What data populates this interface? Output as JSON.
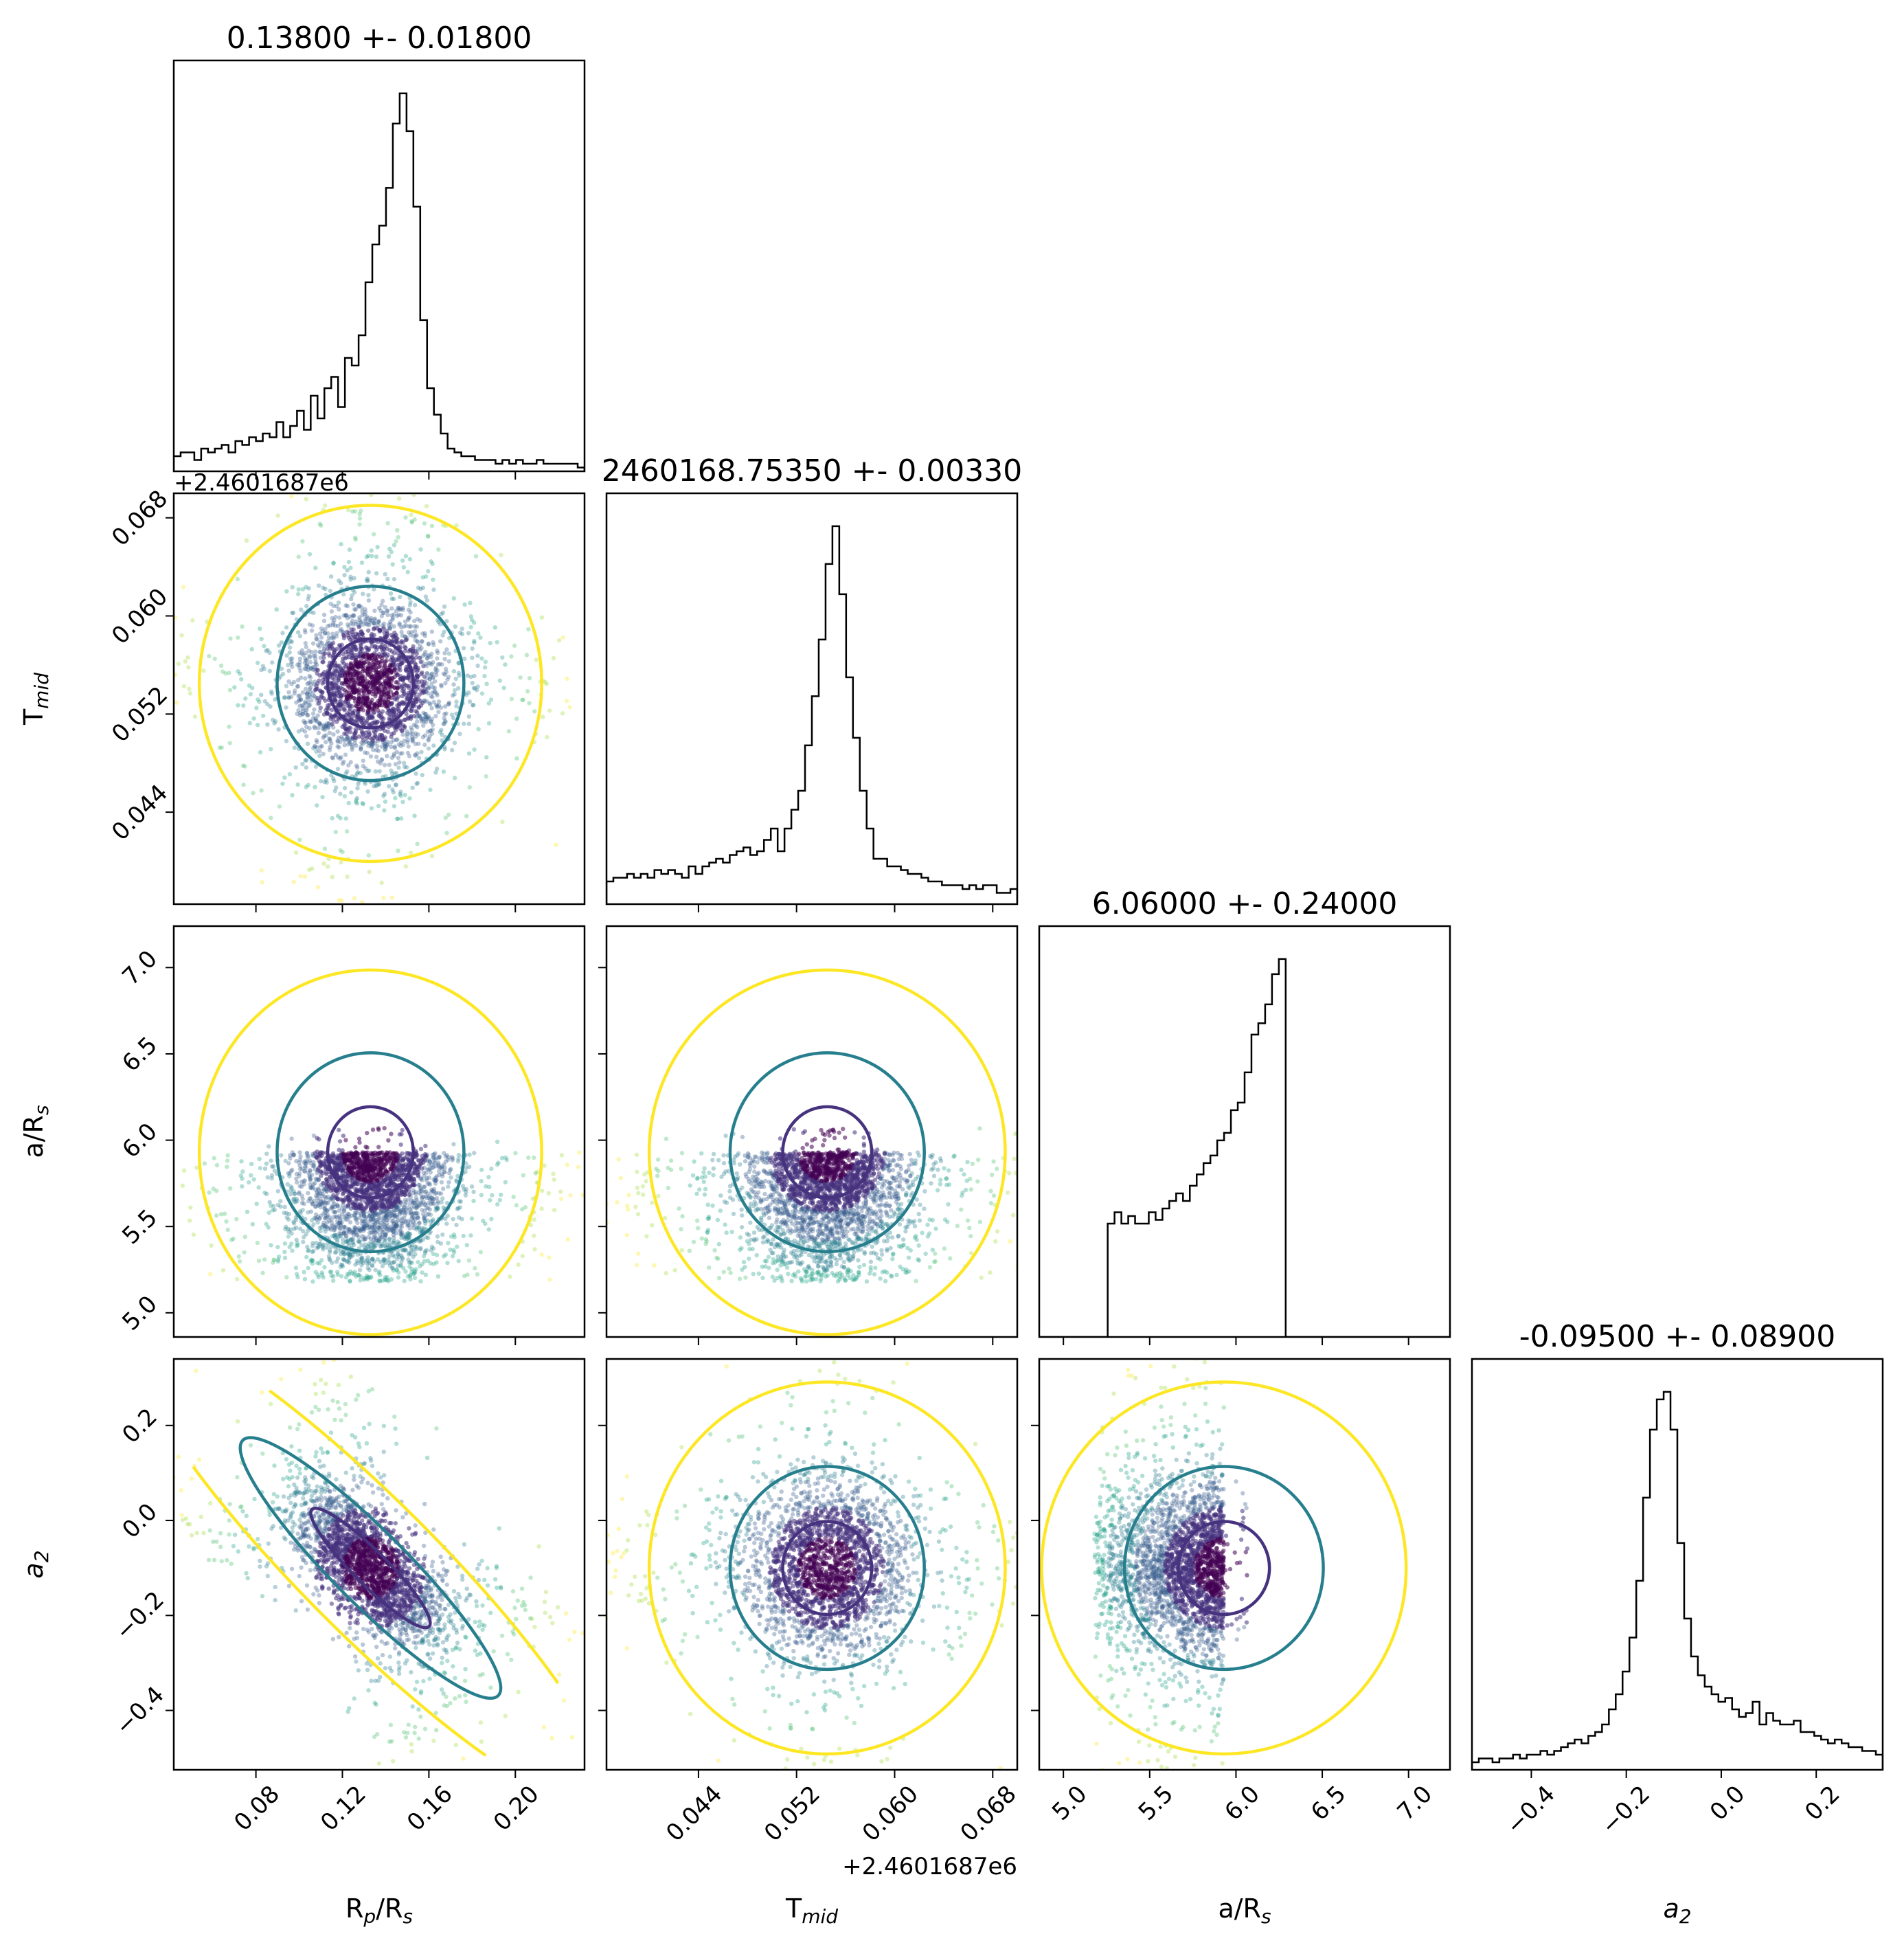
{
  "chart_data": {
    "type": "corner",
    "parameters": [
      {
        "key": "rprs",
        "label": "R",
        "label_sub": "p",
        "label_rest": "/R",
        "label_sub2": "s",
        "range": [
          0.042,
          0.232
        ],
        "ticks": [
          0.08,
          0.12,
          0.16,
          0.2
        ],
        "tick_labels": [
          "0.08",
          "0.12",
          "0.16",
          "0.20"
        ]
      },
      {
        "key": "tmid",
        "label": "T",
        "label_sub": "mid",
        "label_rest": "",
        "label_sub2": "",
        "range": [
          0.0365,
          0.07
        ],
        "ticks": [
          0.044,
          0.052,
          0.06,
          0.068
        ],
        "tick_labels": [
          "0.044",
          "0.052",
          "0.060",
          "0.068"
        ],
        "offset_label": "+2.4601687e6"
      },
      {
        "key": "ars",
        "label": "a/R",
        "label_sub": "s",
        "label_rest": "",
        "label_sub2": "",
        "range": [
          4.86,
          7.24
        ],
        "ticks": [
          5.0,
          5.5,
          6.0,
          6.5,
          7.0
        ],
        "tick_labels": [
          "5.0",
          "5.5",
          "6.0",
          "6.5",
          "7.0"
        ]
      },
      {
        "key": "a2",
        "label": "a",
        "label_sub": "2",
        "label_rest": "",
        "label_sub2": "",
        "italic": true,
        "range": [
          -0.525,
          0.34
        ],
        "ticks": [
          -0.4,
          -0.2,
          0.0,
          0.2
        ],
        "tick_labels": [
          "−0.4",
          "−0.2",
          "0.0",
          "0.2"
        ]
      }
    ],
    "titles": [
      "0.13800 +- 0.01800",
      "2460168.75350 +- 0.00330",
      "6.06000 +- 0.24000",
      "-0.09500 +- 0.08900"
    ],
    "histograms": [
      [
        0.04,
        0.05,
        0.05,
        0.03,
        0.06,
        0.05,
        0.06,
        0.07,
        0.05,
        0.08,
        0.07,
        0.09,
        0.08,
        0.1,
        0.09,
        0.13,
        0.09,
        0.12,
        0.16,
        0.11,
        0.2,
        0.14,
        0.22,
        0.25,
        0.17,
        0.3,
        0.28,
        0.36,
        0.5,
        0.6,
        0.65,
        0.75,
        0.92,
        1.0,
        0.9,
        0.7,
        0.4,
        0.22,
        0.15,
        0.1,
        0.06,
        0.05,
        0.04,
        0.04,
        0.03,
        0.03,
        0.03,
        0.02,
        0.03,
        0.02,
        0.03,
        0.02,
        0.02,
        0.03,
        0.02,
        0.02,
        0.02,
        0.02,
        0.02,
        0.01
      ],
      [
        0.06,
        0.07,
        0.07,
        0.08,
        0.07,
        0.08,
        0.07,
        0.09,
        0.08,
        0.09,
        0.08,
        0.07,
        0.1,
        0.08,
        0.1,
        0.11,
        0.12,
        0.11,
        0.13,
        0.14,
        0.15,
        0.13,
        0.14,
        0.17,
        0.2,
        0.14,
        0.2,
        0.25,
        0.3,
        0.42,
        0.55,
        0.7,
        0.9,
        1.0,
        0.82,
        0.6,
        0.44,
        0.3,
        0.2,
        0.12,
        0.12,
        0.1,
        0.1,
        0.09,
        0.08,
        0.08,
        0.07,
        0.06,
        0.06,
        0.05,
        0.05,
        0.05,
        0.04,
        0.05,
        0.04,
        0.05,
        0.05,
        0.03,
        0.03,
        0.04
      ],
      [
        0,
        0,
        0,
        0,
        0,
        0,
        0,
        0,
        0,
        0,
        0.3,
        0.33,
        0.3,
        0.32,
        0.3,
        0.3,
        0.33,
        0.31,
        0.34,
        0.36,
        0.38,
        0.36,
        0.4,
        0.43,
        0.46,
        0.48,
        0.52,
        0.54,
        0.6,
        0.62,
        0.7,
        0.8,
        0.83,
        0.88,
        0.96,
        1.0,
        0,
        0,
        0,
        0,
        0,
        0,
        0,
        0,
        0,
        0,
        0,
        0,
        0,
        0,
        0,
        0,
        0,
        0,
        0,
        0,
        0,
        0,
        0,
        0
      ],
      [
        0.02,
        0.03,
        0.03,
        0.02,
        0.03,
        0.03,
        0.04,
        0.03,
        0.04,
        0.04,
        0.05,
        0.04,
        0.05,
        0.06,
        0.07,
        0.08,
        0.07,
        0.09,
        0.1,
        0.12,
        0.16,
        0.2,
        0.26,
        0.35,
        0.5,
        0.72,
        0.9,
        0.98,
        1.0,
        0.9,
        0.6,
        0.4,
        0.3,
        0.25,
        0.22,
        0.2,
        0.18,
        0.19,
        0.16,
        0.14,
        0.15,
        0.18,
        0.12,
        0.15,
        0.13,
        0.12,
        0.12,
        0.13,
        0.1,
        0.1,
        0.09,
        0.08,
        0.07,
        0.08,
        0.07,
        0.06,
        0.06,
        0.05,
        0.05,
        0.04
      ]
    ],
    "posterior": {
      "center": {
        "rprs": 0.133,
        "tmid": 0.0545,
        "ars": 5.93,
        "a2": -0.1
      },
      "sigma": {
        "rprs": 0.018,
        "tmid": 0.0033,
        "ars": 0.24,
        "a2": 0.089
      },
      "a2_rprs_correlation": -0.75,
      "ars_support": [
        5.18,
        6.07
      ]
    },
    "colors": {
      "inner": "#46327e",
      "middle": "#277f8e",
      "outer": "#fde725",
      "hist": "#000000"
    },
    "scatter_colormap": "viridis",
    "grid": false
  }
}
